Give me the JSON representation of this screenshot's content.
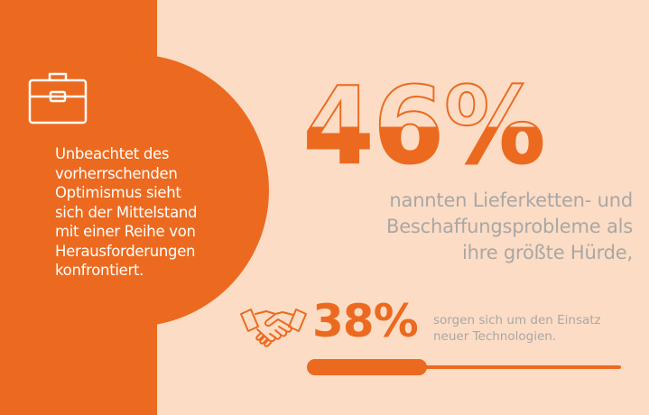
{
  "intro": {
    "line1": "Unbeachtet des",
    "line2": "vorherrschenden",
    "line3": "Optimismus sieht",
    "line4": "sich der Mittelstand",
    "line5": "mit einer Reihe von",
    "line6": "Herausforderungen",
    "line7": "konfrontiert."
  },
  "stat1": {
    "value": "46%",
    "fill_fraction": 0.46,
    "line1": "nannten Lieferketten- und",
    "line2": "Beschaffungsprobleme als",
    "line3": "ihre größte Hürde,"
  },
  "stat2": {
    "value": "38%",
    "progress_fraction": 0.38,
    "line1": "sorgen sich um den Einsatz",
    "line2": "neuer Technologien."
  },
  "icons": {
    "briefcase": "briefcase-icon",
    "handshake": "handshake-icon"
  },
  "colors": {
    "accent": "#ec6a1f",
    "background": "#fcdcc4",
    "text_gray": "#a9a7a6",
    "white": "#ffffff"
  }
}
